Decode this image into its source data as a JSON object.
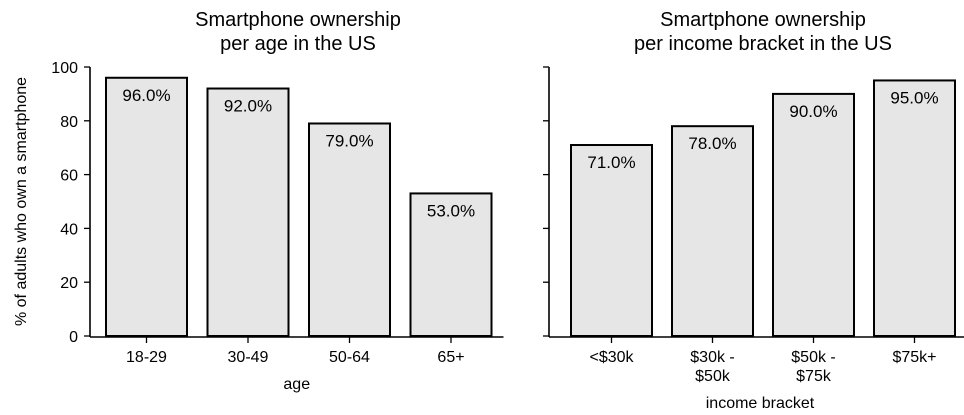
{
  "bar_color": "#e6e6e6",
  "chart_data": [
    {
      "type": "bar",
      "title": [
        "Smartphone ownership",
        "per age in the US"
      ],
      "xlabel": "age",
      "ylabel": "% of adults who own a smartphone",
      "ylim": [
        0,
        100
      ],
      "yticks": [
        0,
        20,
        40,
        60,
        80,
        100
      ],
      "categories": [
        [
          "18-29"
        ],
        [
          "30-49"
        ],
        [
          "50-64"
        ],
        [
          "65+"
        ]
      ],
      "values": [
        96,
        92,
        79,
        53
      ],
      "data_labels": [
        "96.0%",
        "92.0%",
        "79.0%",
        "53.0%"
      ]
    },
    {
      "type": "bar",
      "title": [
        "Smartphone ownership",
        "per income bracket in the US"
      ],
      "xlabel": "income bracket",
      "ylabel": "",
      "ylim": [
        0,
        100
      ],
      "yticks": [
        0,
        20,
        40,
        60,
        80,
        100
      ],
      "categories": [
        [
          "<$30k"
        ],
        [
          "$30k -",
          "$50k"
        ],
        [
          "$50k -",
          "$75k"
        ],
        [
          "$75k+"
        ]
      ],
      "values": [
        71,
        78,
        90,
        95
      ],
      "data_labels": [
        "71.0%",
        "78.0%",
        "90.0%",
        "95.0%"
      ]
    }
  ]
}
